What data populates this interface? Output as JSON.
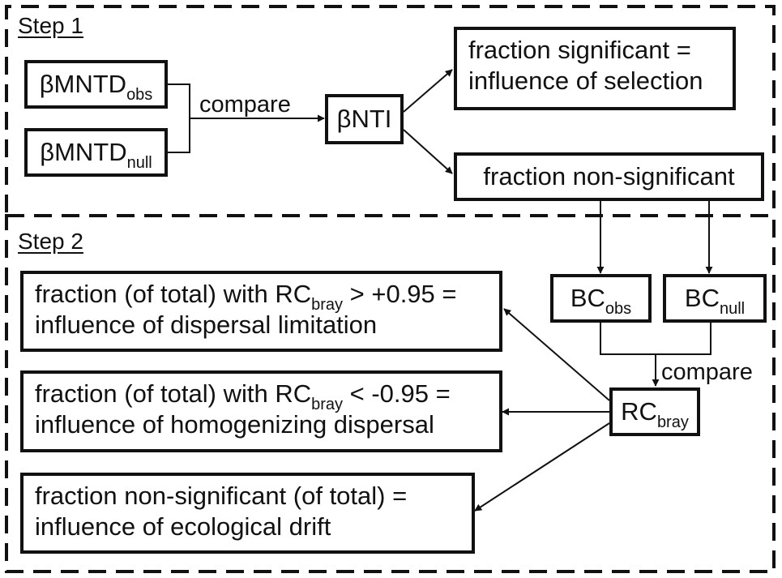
{
  "step1": {
    "label": "Step 1",
    "mntd_obs": {
      "base": "βMNTD",
      "sub": "obs"
    },
    "mntd_null": {
      "base": "βMNTD",
      "sub": "null"
    },
    "compare": "compare",
    "bnti": "βNTI",
    "significant": [
      "fraction significant =",
      "influence of selection"
    ],
    "non_significant": "fraction non-significant"
  },
  "step2": {
    "label": "Step 2",
    "bc_obs": {
      "base": "BC",
      "sub": "obs"
    },
    "bc_null": {
      "base": "BC",
      "sub": "null"
    },
    "compare": "compare",
    "rc": {
      "base": "RC",
      "sub": "bray"
    },
    "dispersal_limitation": {
      "line1_pre": "fraction (of total) with RC",
      "line1_sub": "bray",
      "line1_post": " > +0.95 =",
      "line2": "influence of dispersal limitation"
    },
    "homogenizing": {
      "line1_pre": "fraction (of total) with RC",
      "line1_sub": "bray",
      "line1_post": " < -0.95 =",
      "line2": "influence of homogenizing dispersal"
    },
    "drift": [
      "fraction non-significant (of total) =",
      "influence of ecological drift"
    ]
  }
}
